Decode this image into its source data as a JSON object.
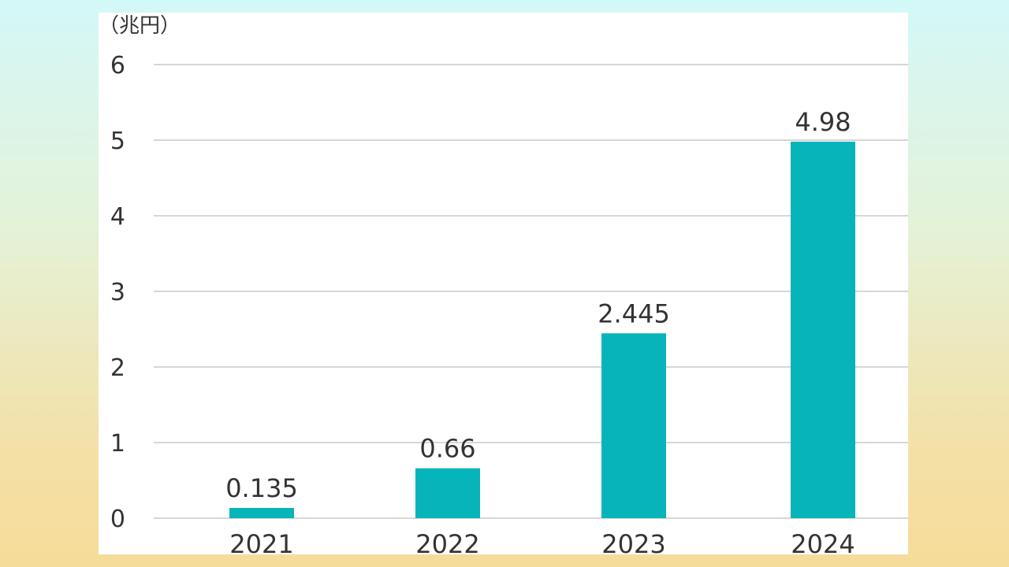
{
  "chart_data": {
    "type": "bar",
    "unit_label": "（兆円）",
    "categories": [
      "2021",
      "2022",
      "2023",
      "2024"
    ],
    "values": [
      0.135,
      0.66,
      2.445,
      4.98
    ],
    "data_labels": [
      "0.135",
      "0.66",
      "2.445",
      "4.98"
    ],
    "yticks": [
      "0",
      "1",
      "2",
      "3",
      "4",
      "5",
      "6"
    ],
    "ylim": [
      0,
      6
    ],
    "grid": true,
    "legend": "none",
    "colors": {
      "bar": "#06b4b9",
      "grid": "#c8c8c8",
      "text": "#333333"
    }
  }
}
